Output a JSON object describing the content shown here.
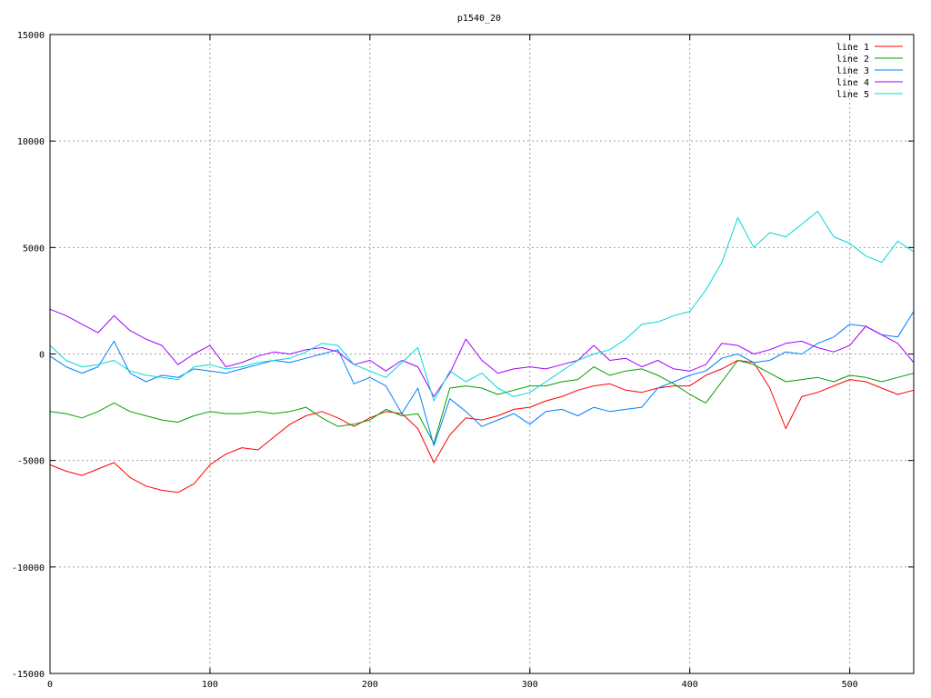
{
  "chart_data": {
    "type": "line",
    "title": "p1540_20",
    "xlabel": "",
    "ylabel": "",
    "xlim": [
      0,
      540
    ],
    "ylim": [
      -15000,
      15000
    ],
    "xticks": [
      0,
      100,
      200,
      300,
      400,
      500
    ],
    "yticks": [
      -15000,
      -10000,
      -5000,
      0,
      5000,
      10000,
      15000
    ],
    "grid": true,
    "legend_position": "top-right",
    "x": [
      0,
      10,
      20,
      30,
      40,
      50,
      60,
      70,
      80,
      90,
      100,
      110,
      120,
      130,
      140,
      150,
      160,
      170,
      180,
      190,
      200,
      210,
      220,
      230,
      240,
      250,
      260,
      270,
      280,
      290,
      300,
      310,
      320,
      330,
      340,
      350,
      360,
      370,
      380,
      390,
      400,
      410,
      420,
      430,
      440,
      450,
      460,
      470,
      480,
      490,
      500,
      510,
      520,
      530,
      540
    ],
    "series": [
      {
        "name": "line 1",
        "color": "#ff0000",
        "values": [
          -5200,
          -5500,
          -5700,
          -5400,
          -5100,
          -5800,
          -6200,
          -6400,
          -6500,
          -6100,
          -5200,
          -4700,
          -4400,
          -4500,
          -3900,
          -3300,
          -2900,
          -2700,
          -3000,
          -3400,
          -3000,
          -2700,
          -2800,
          -3500,
          -5100,
          -3800,
          -3000,
          -3100,
          -2900,
          -2600,
          -2500,
          -2200,
          -2000,
          -1700,
          -1500,
          -1400,
          -1700,
          -1800,
          -1600,
          -1500,
          -1500,
          -1000,
          -700,
          -300,
          -400,
          -1600,
          -3500,
          -2000,
          -1800,
          -1500,
          -1200,
          -1300,
          -1600,
          -1900,
          -1700
        ]
      },
      {
        "name": "line 2",
        "color": "#00a000",
        "values": [
          -2700,
          -2800,
          -3000,
          -2700,
          -2300,
          -2700,
          -2900,
          -3100,
          -3200,
          -2900,
          -2700,
          -2800,
          -2800,
          -2700,
          -2800,
          -2700,
          -2500,
          -3000,
          -3400,
          -3300,
          -3100,
          -2600,
          -2900,
          -2800,
          -4200,
          -1600,
          -1500,
          -1600,
          -1900,
          -1700,
          -1500,
          -1500,
          -1300,
          -1200,
          -600,
          -1000,
          -800,
          -700,
          -1000,
          -1400,
          -1900,
          -2300,
          -1300,
          -300,
          -500,
          -900,
          -1300,
          -1200,
          -1100,
          -1300,
          -1000,
          -1100,
          -1300,
          -1100,
          -900
        ]
      },
      {
        "name": "line 3",
        "color": "#0080ff",
        "values": [
          -100,
          -600,
          -900,
          -600,
          600,
          -900,
          -1300,
          -1000,
          -1100,
          -700,
          -800,
          -900,
          -700,
          -500,
          -300,
          -400,
          -200,
          0,
          200,
          -1400,
          -1100,
          -1500,
          -2800,
          -1600,
          -4300,
          -2100,
          -2700,
          -3400,
          -3100,
          -2800,
          -3300,
          -2700,
          -2600,
          -2900,
          -2500,
          -2700,
          -2600,
          -2500,
          -1600,
          -1300,
          -1000,
          -800,
          -200,
          0,
          -400,
          -300,
          100,
          0,
          500,
          800,
          1400,
          1300,
          900,
          800,
          2000
        ]
      },
      {
        "name": "line 4",
        "color": "#a000ff",
        "values": [
          2100,
          1800,
          1400,
          1000,
          1800,
          1100,
          700,
          400,
          -500,
          0,
          400,
          -600,
          -400,
          -100,
          100,
          0,
          200,
          300,
          100,
          -500,
          -300,
          -800,
          -300,
          -600,
          -2000,
          -900,
          700,
          -300,
          -900,
          -700,
          -600,
          -700,
          -500,
          -300,
          400,
          -300,
          -200,
          -600,
          -300,
          -700,
          -800,
          -500,
          500,
          400,
          0,
          200,
          500,
          600,
          300,
          100,
          400,
          1300,
          900,
          500,
          -400
        ]
      },
      {
        "name": "line 5",
        "color": "#00d8d8",
        "values": [
          400,
          -300,
          -600,
          -500,
          -300,
          -800,
          -1000,
          -1100,
          -1200,
          -600,
          -500,
          -700,
          -600,
          -400,
          -300,
          -200,
          100,
          500,
          400,
          -500,
          -800,
          -1100,
          -400,
          300,
          -2200,
          -800,
          -1300,
          -900,
          -1600,
          -2000,
          -1800,
          -1300,
          -800,
          -300,
          0,
          200,
          700,
          1400,
          1500,
          1800,
          2000,
          3000,
          4300,
          6400,
          5000,
          5700,
          5500,
          6100,
          6700,
          5500,
          5200,
          4600,
          4300,
          5300,
          4800
        ]
      }
    ]
  }
}
